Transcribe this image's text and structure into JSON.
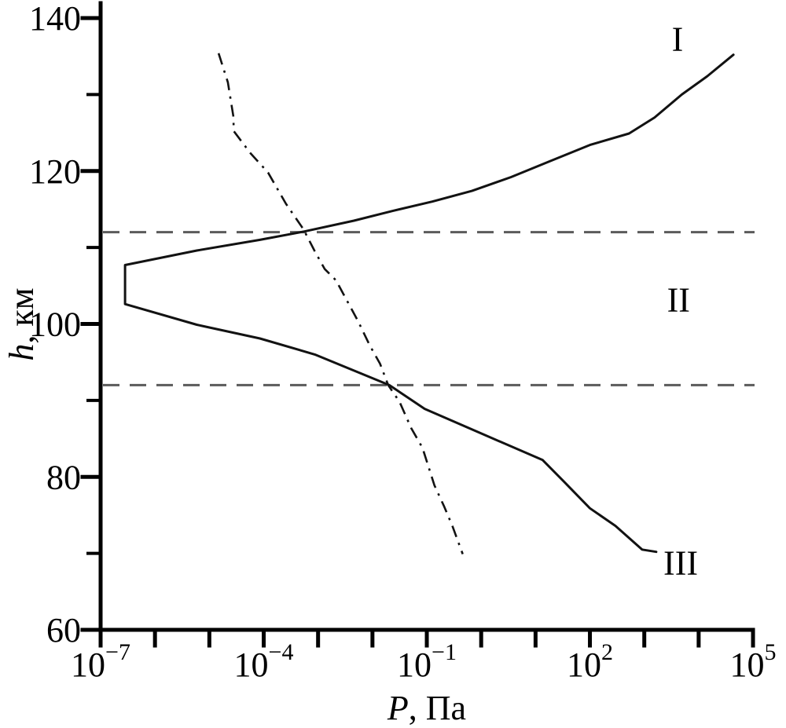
{
  "colors": {
    "background": "#ffffff",
    "axis": "#000000",
    "curve": "#121212",
    "dashed_boundary_line": "#5b5b5b"
  },
  "chart_data": {
    "type": "line",
    "title": "",
    "xlabel": {
      "italic_var": "P",
      "suffix": ", Па"
    },
    "ylabel": {
      "italic_var": "h",
      "suffix": ", км"
    },
    "x_scale": "log10",
    "xlim_log10": [
      -7,
      5
    ],
    "ylim": [
      60,
      140
    ],
    "x_major_ticks": [
      -7,
      -4,
      -1,
      2,
      5
    ],
    "x_major_tick_labels": [
      "10⁻⁷",
      "10⁻⁴",
      "10⁻¹",
      "10²",
      "10⁵"
    ],
    "x_minor_ticks": [
      -6,
      -5,
      -3,
      -2,
      0,
      1,
      3,
      4
    ],
    "y_major_ticks": [
      60,
      80,
      100,
      120,
      140
    ],
    "y_minor_ticks": [
      70,
      90,
      110,
      130
    ],
    "grid": "off",
    "legend": "none",
    "dashed_horizontal_lines_h_km": [
      112,
      92
    ],
    "region_labels": [
      {
        "text": "I",
        "logP": 3.61,
        "h_km": 137.3
      },
      {
        "text": "II",
        "logP": 3.63,
        "h_km": 103.2
      },
      {
        "text": "III",
        "logP": 3.67,
        "h_km": 68.8
      }
    ],
    "series": [
      {
        "name": "solid-curve-I-III",
        "style": "solid",
        "color": "#121212",
        "points_logP_h": [
          [
            4.64,
            135.2
          ],
          [
            4.16,
            132.4
          ],
          [
            3.69,
            130.0
          ],
          [
            3.19,
            127.0
          ],
          [
            2.72,
            124.9
          ],
          [
            2.0,
            123.4
          ],
          [
            1.27,
            121.3
          ],
          [
            0.55,
            119.2
          ],
          [
            -0.17,
            117.4
          ],
          [
            -0.9,
            116.0
          ],
          [
            -1.62,
            114.8
          ],
          [
            -2.34,
            113.5
          ],
          [
            -3.25,
            112.1
          ],
          [
            -4.07,
            111.0
          ],
          [
            -5.23,
            109.6
          ],
          [
            -6.55,
            107.7
          ],
          [
            -6.55,
            102.6
          ],
          [
            -5.23,
            99.9
          ],
          [
            -4.07,
            98.1
          ],
          [
            -3.06,
            96.0
          ],
          [
            -1.69,
            92.0
          ],
          [
            -1.04,
            88.9
          ],
          [
            -0.07,
            85.9
          ],
          [
            1.13,
            82.2
          ],
          [
            1.52,
            79.4
          ],
          [
            2.0,
            75.9
          ],
          [
            2.47,
            73.6
          ],
          [
            2.96,
            70.5
          ],
          [
            3.22,
            70.2
          ]
        ]
      },
      {
        "name": "dash-dot-curve",
        "style": "dash-dot",
        "color": "#121212",
        "points_logP_h": [
          [
            -4.83,
            135.4
          ],
          [
            -4.66,
            131.6
          ],
          [
            -4.56,
            127.2
          ],
          [
            -4.55,
            125.2
          ],
          [
            -4.24,
            122.3
          ],
          [
            -3.92,
            119.8
          ],
          [
            -3.59,
            115.7
          ],
          [
            -3.27,
            112.4
          ],
          [
            -3.06,
            109.5
          ],
          [
            -2.88,
            107.2
          ],
          [
            -2.67,
            105.7
          ],
          [
            -2.26,
            100.3
          ],
          [
            -2.05,
            97.2
          ],
          [
            -1.86,
            94.8
          ],
          [
            -1.71,
            92.0
          ],
          [
            -1.5,
            89.8
          ],
          [
            -1.29,
            86.4
          ],
          [
            -1.08,
            83.8
          ],
          [
            -0.86,
            78.9
          ],
          [
            -0.68,
            76.1
          ],
          [
            -0.53,
            73.6
          ],
          [
            -0.34,
            69.9
          ]
        ]
      }
    ]
  }
}
